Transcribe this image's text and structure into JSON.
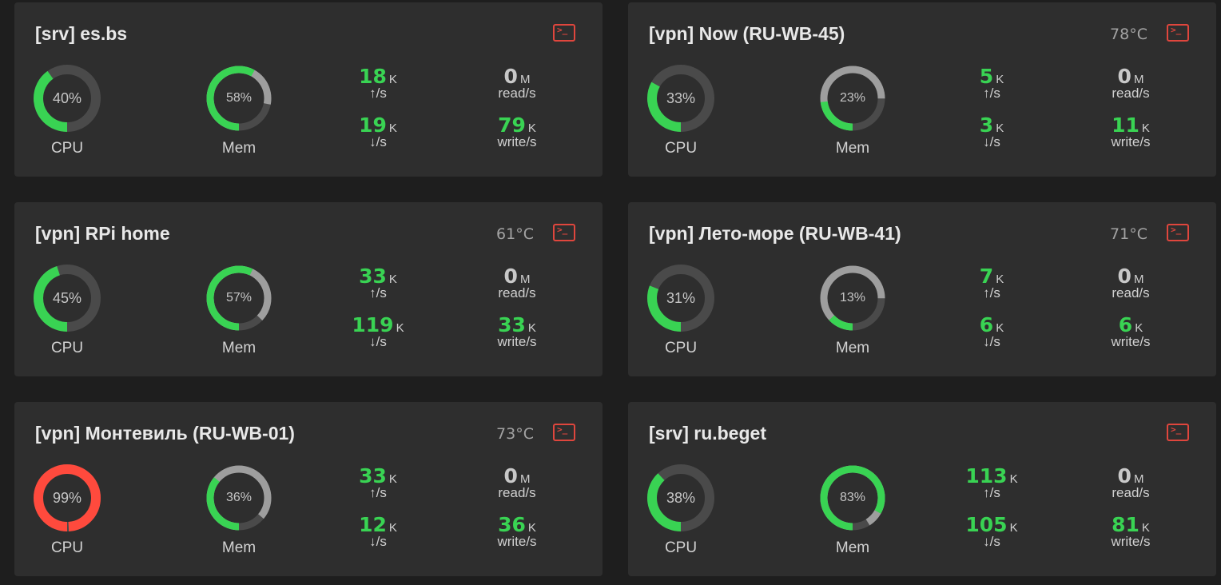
{
  "colors": {
    "ring_track": "#4a4a4a",
    "cpu_ok": "#39d353",
    "cpu_crit": "#ff4a3d",
    "mem_used": "#39d353",
    "mem_cached": "#9e9e9e",
    "terminal": "#e0463d"
  },
  "labels": {
    "cpu": "CPU",
    "mem": "Mem",
    "up": "↑/s",
    "down": "↓/s",
    "read": "read/s",
    "write": "write/s"
  },
  "cards": [
    {
      "title": "[srv] es.bs",
      "temp": "",
      "terminal_icon": "terminal-icon",
      "cpu": {
        "percent": 40,
        "text": "40%"
      },
      "mem": {
        "percent": 58,
        "cached": 20,
        "text": "58%"
      },
      "net": {
        "up": "18",
        "up_unit": "K",
        "down": "19",
        "down_unit": "K"
      },
      "disk": {
        "read": "0",
        "read_unit": "M",
        "write": "79",
        "write_unit": "K"
      }
    },
    {
      "title": "[vpn] Now (RU-WB-45)",
      "temp": "78°C",
      "terminal_icon": "terminal-icon",
      "cpu": {
        "percent": 33,
        "text": "33%"
      },
      "mem": {
        "percent": 23,
        "cached": 52,
        "text": "23%"
      },
      "net": {
        "up": "5",
        "up_unit": "K",
        "down": "3",
        "down_unit": "K"
      },
      "disk": {
        "read": "0",
        "read_unit": "M",
        "write": "11",
        "write_unit": "K"
      }
    },
    {
      "title": "[vpn] RPi home",
      "temp": "61°C",
      "terminal_icon": "terminal-icon",
      "cpu": {
        "percent": 45,
        "text": "45%"
      },
      "mem": {
        "percent": 57,
        "cached": 30,
        "text": "57%"
      },
      "net": {
        "up": "33",
        "up_unit": "K",
        "down": "119",
        "down_unit": "K"
      },
      "disk": {
        "read": "0",
        "read_unit": "M",
        "write": "33",
        "write_unit": "K"
      }
    },
    {
      "title": "[vpn] Лето-море (RU-WB-41)",
      "temp": "71°C",
      "terminal_icon": "terminal-icon",
      "cpu": {
        "percent": 31,
        "text": "31%"
      },
      "mem": {
        "percent": 13,
        "cached": 62,
        "text": "13%"
      },
      "net": {
        "up": "7",
        "up_unit": "K",
        "down": "6",
        "down_unit": "K"
      },
      "disk": {
        "read": "0",
        "read_unit": "M",
        "write": "6",
        "write_unit": "K"
      }
    },
    {
      "title": "[vpn] Монтевиль (RU-WB-01)",
      "temp": "73°C",
      "terminal_icon": "terminal-icon",
      "cpu": {
        "percent": 99,
        "text": "99%"
      },
      "mem": {
        "percent": 36,
        "cached": 50,
        "text": "36%"
      },
      "net": {
        "up": "33",
        "up_unit": "K",
        "down": "12",
        "down_unit": "K"
      },
      "disk": {
        "read": "0",
        "read_unit": "M",
        "write": "36",
        "write_unit": "K"
      }
    },
    {
      "title": "[srv] ru.beget",
      "temp": "",
      "terminal_icon": "terminal-icon",
      "cpu": {
        "percent": 38,
        "text": "38%"
      },
      "mem": {
        "percent": 83,
        "cached": 8,
        "text": "83%"
      },
      "net": {
        "up": "113",
        "up_unit": "K",
        "down": "105",
        "down_unit": "K"
      },
      "disk": {
        "read": "0",
        "read_unit": "M",
        "write": "81",
        "write_unit": "K"
      }
    }
  ]
}
